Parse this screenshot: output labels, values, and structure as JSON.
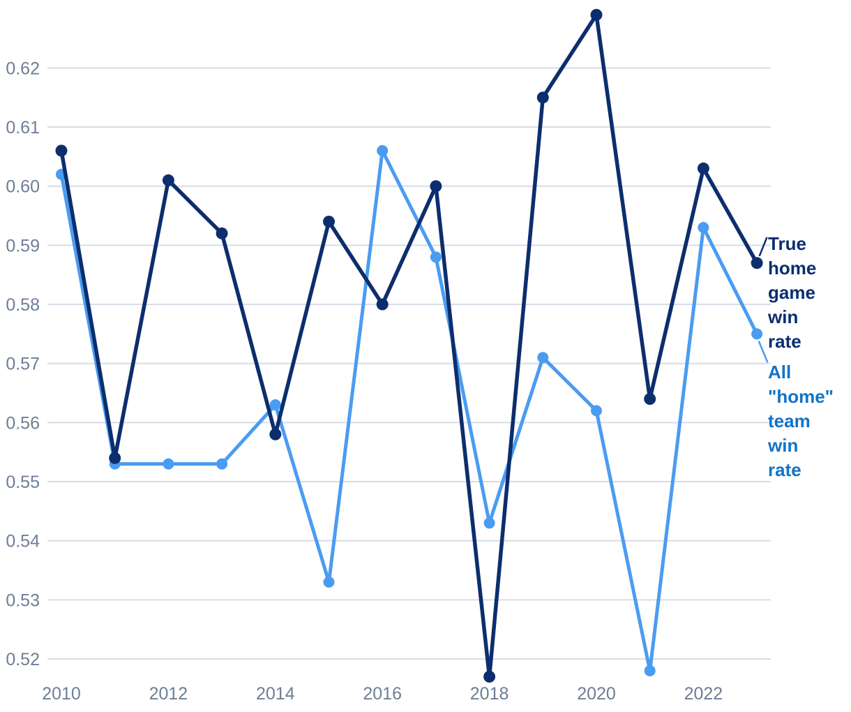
{
  "chart_data": {
    "type": "line",
    "title": "",
    "xlabel": "",
    "ylabel": "",
    "grid": "horizontal",
    "legend_position": "right-inline",
    "x": [
      2010,
      2011,
      2012,
      2013,
      2014,
      2015,
      2016,
      2017,
      2018,
      2019,
      2020,
      2021,
      2022,
      2023
    ],
    "series": [
      {
        "name": "All \"home\" team win rate",
        "color": "#4a9cf1",
        "label_color": "#1273c7",
        "values": [
          0.602,
          0.553,
          0.553,
          0.553,
          0.563,
          0.533,
          0.606,
          0.588,
          0.543,
          0.571,
          0.562,
          0.518,
          0.593,
          0.575
        ]
      },
      {
        "name": "True home game win rate",
        "color": "#0c2e6e",
        "label_color": "#0c2e6e",
        "values": [
          0.606,
          0.554,
          0.601,
          0.592,
          0.558,
          0.594,
          0.58,
          0.6,
          0.517,
          0.615,
          0.629,
          0.564,
          0.603,
          0.587
        ]
      }
    ],
    "y_ticks": [
      0.52,
      0.53,
      0.54,
      0.55,
      0.56,
      0.57,
      0.58,
      0.59,
      0.6,
      0.61,
      0.62
    ],
    "y_tick_labels": [
      "0.52",
      "0.53",
      "0.54",
      "0.55",
      "0.56",
      "0.57",
      "0.58",
      "0.59",
      "0.60",
      "0.61",
      "0.62"
    ],
    "x_ticks": [
      2010,
      2012,
      2014,
      2016,
      2018,
      2020,
      2022
    ],
    "x_tick_labels": [
      "2010",
      "2012",
      "2014",
      "2016",
      "2018",
      "2020",
      "2022"
    ],
    "ylim": [
      0.515,
      0.631
    ],
    "xlim": [
      2010,
      2023
    ]
  },
  "colors": {
    "background": "#ffffff",
    "gridline": "#d7dce6",
    "axis_label": "#6e7e96",
    "series_dark": "#0c2e6e",
    "series_light": "#4a9cf1",
    "legend_light_text": "#1273c7"
  }
}
